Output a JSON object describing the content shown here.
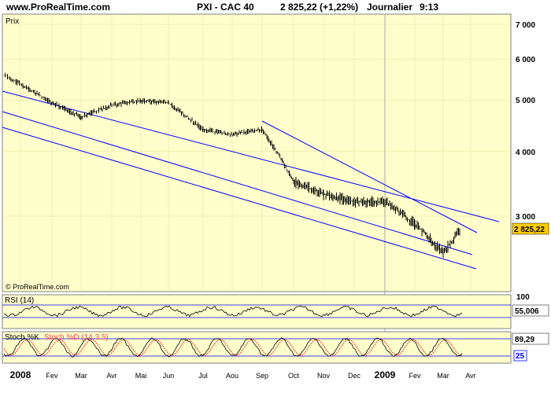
{
  "header": {
    "site": "www.ProRealTime.com",
    "symbol": "PXI - CAC 40",
    "price_change": "2 825,22 (+1,22%)",
    "period": "Journalier",
    "time": "9:13"
  },
  "main_panel": {
    "label": "Prix",
    "watermark": "© ProRealTime.com",
    "last_price_tag": "2 825,22",
    "y_ticks": [
      "7 000",
      "6 000",
      "5 000",
      "4 000",
      "3 000"
    ]
  },
  "rsi_panel": {
    "label": "RSI (14)",
    "value_tag": "55,006",
    "top_tick": "100"
  },
  "stoch_panel": {
    "label_k": "Stoch %K",
    "label_d": "Stoch %D (14 3 5)",
    "value_tag": "89,29",
    "low_tick": "25"
  },
  "x_axis": {
    "labels": [
      "2008",
      "Fev",
      "Mar",
      "Avr",
      "Mai",
      "Jun",
      "Jul",
      "Aou",
      "Sep",
      "Oct",
      "Nov",
      "Dec",
      "2009",
      "Fev",
      "Mar",
      "Avr"
    ]
  },
  "colors": {
    "background": "#FFFFCC",
    "line": "#0000FF",
    "stoch_d": "#FF0000",
    "tag": "#FFCC00"
  },
  "chart_data": [
    {
      "type": "line",
      "title": "PXI - CAC 40",
      "scale": "log",
      "ylim": [
        2400,
        7200
      ],
      "y_ticks": [
        3000,
        4000,
        5000,
        6000,
        7000
      ],
      "x_range": [
        "2008-01",
        "2009-04"
      ],
      "x": [
        "2008-01",
        "2008-02",
        "2008-03",
        "2008-04",
        "2008-05",
        "2008-06",
        "2008-07",
        "2008-08",
        "2008-09",
        "2008-10",
        "2008-11",
        "2008-12",
        "2009-01",
        "2009-02",
        "2009-03",
        "2009-03-late"
      ],
      "values": [
        5600,
        4950,
        4650,
        4900,
        5000,
        4950,
        4400,
        4300,
        4400,
        3500,
        3300,
        3200,
        3200,
        2900,
        2550,
        2825.22
      ],
      "last_value": 2825.22,
      "trendlines": "downward channel lines"
    },
    {
      "type": "line",
      "title": "RSI (14)",
      "ylim": [
        0,
        100
      ],
      "last_value": 55.006
    },
    {
      "type": "line",
      "title": "Stoch %K / Stoch %D (14 3 5)",
      "ylim": [
        0,
        100
      ],
      "last_value": 89.29
    }
  ]
}
